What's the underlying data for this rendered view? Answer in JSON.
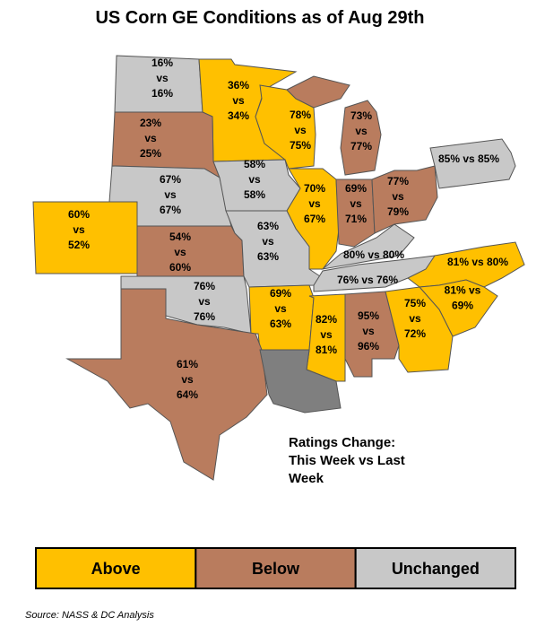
{
  "title": "US Corn GE Conditions as of Aug 29th",
  "states": [
    {
      "lines": [
        "16%",
        "vs",
        "16%"
      ],
      "color": "#c8c8c8"
    },
    {
      "lines": [
        "36%",
        "vs",
        "34%"
      ],
      "color": "#ffc000"
    },
    {
      "lines": [
        "23%",
        "vs",
        "25%"
      ],
      "color": "#b97c5e"
    },
    {
      "lines": [
        "78%",
        "vs",
        "75%"
      ],
      "color": "#ffc000"
    },
    {
      "lines": [
        "73%",
        "vs",
        "77%"
      ],
      "color": "#b97c5e"
    },
    {
      "lines": [
        "67%",
        "vs",
        "67%"
      ],
      "color": "#c8c8c8"
    },
    {
      "lines": [
        "58%",
        "vs",
        "58%"
      ],
      "color": "#c8c8c8"
    },
    {
      "lines": [
        "85% vs 85%"
      ],
      "color": "#c8c8c8"
    },
    {
      "lines": [
        "60%",
        "vs",
        "52%"
      ],
      "color": "#ffc000"
    },
    {
      "lines": [
        "70%",
        "vs",
        "67%"
      ],
      "color": "#ffc000"
    },
    {
      "lines": [
        "69%",
        "vs",
        "71%"
      ],
      "color": "#b97c5e"
    },
    {
      "lines": [
        "77%",
        "vs",
        "79%"
      ],
      "color": "#b97c5e"
    },
    {
      "lines": [
        "54%",
        "vs",
        "60%"
      ],
      "color": "#b97c5e"
    },
    {
      "lines": [
        "63%",
        "vs",
        "63%"
      ],
      "color": "#c8c8c8"
    },
    {
      "lines": [
        "80% vs 80%"
      ],
      "color": "#c8c8c8"
    },
    {
      "lines": [
        "81% vs 80%"
      ],
      "color": "#ffc000"
    },
    {
      "lines": [
        "76%",
        "vs",
        "76%"
      ],
      "color": "#c8c8c8"
    },
    {
      "lines": [
        "76% vs 76%"
      ],
      "color": "#c8c8c8"
    },
    {
      "lines": [
        "69%",
        "vs",
        "63%"
      ],
      "color": "#ffc000"
    },
    {
      "lines": [
        "81% vs",
        "69%"
      ],
      "color": "#ffc000"
    },
    {
      "lines": [
        "82%",
        "vs",
        "81%"
      ],
      "color": "#ffc000"
    },
    {
      "lines": [
        "95%",
        "vs",
        "96%"
      ],
      "color": "#b97c5e"
    },
    {
      "lines": [
        "75%",
        "vs",
        "72%"
      ],
      "color": "#ffc000"
    },
    {
      "lines": [
        "61%",
        "vs",
        "64%"
      ],
      "color": "#b97c5e"
    },
    {
      "lines": [],
      "color": "#7f7f7f"
    }
  ],
  "note": [
    "Ratings Change:",
    "This Week vs Last",
    "Week"
  ],
  "legend": [
    {
      "label": "Above",
      "color": "#ffc000"
    },
    {
      "label": "Below",
      "color": "#b97c5e"
    },
    {
      "label": "Unchanged",
      "color": "#c8c8c8"
    }
  ],
  "source": "Source: NASS & DC Analysis"
}
